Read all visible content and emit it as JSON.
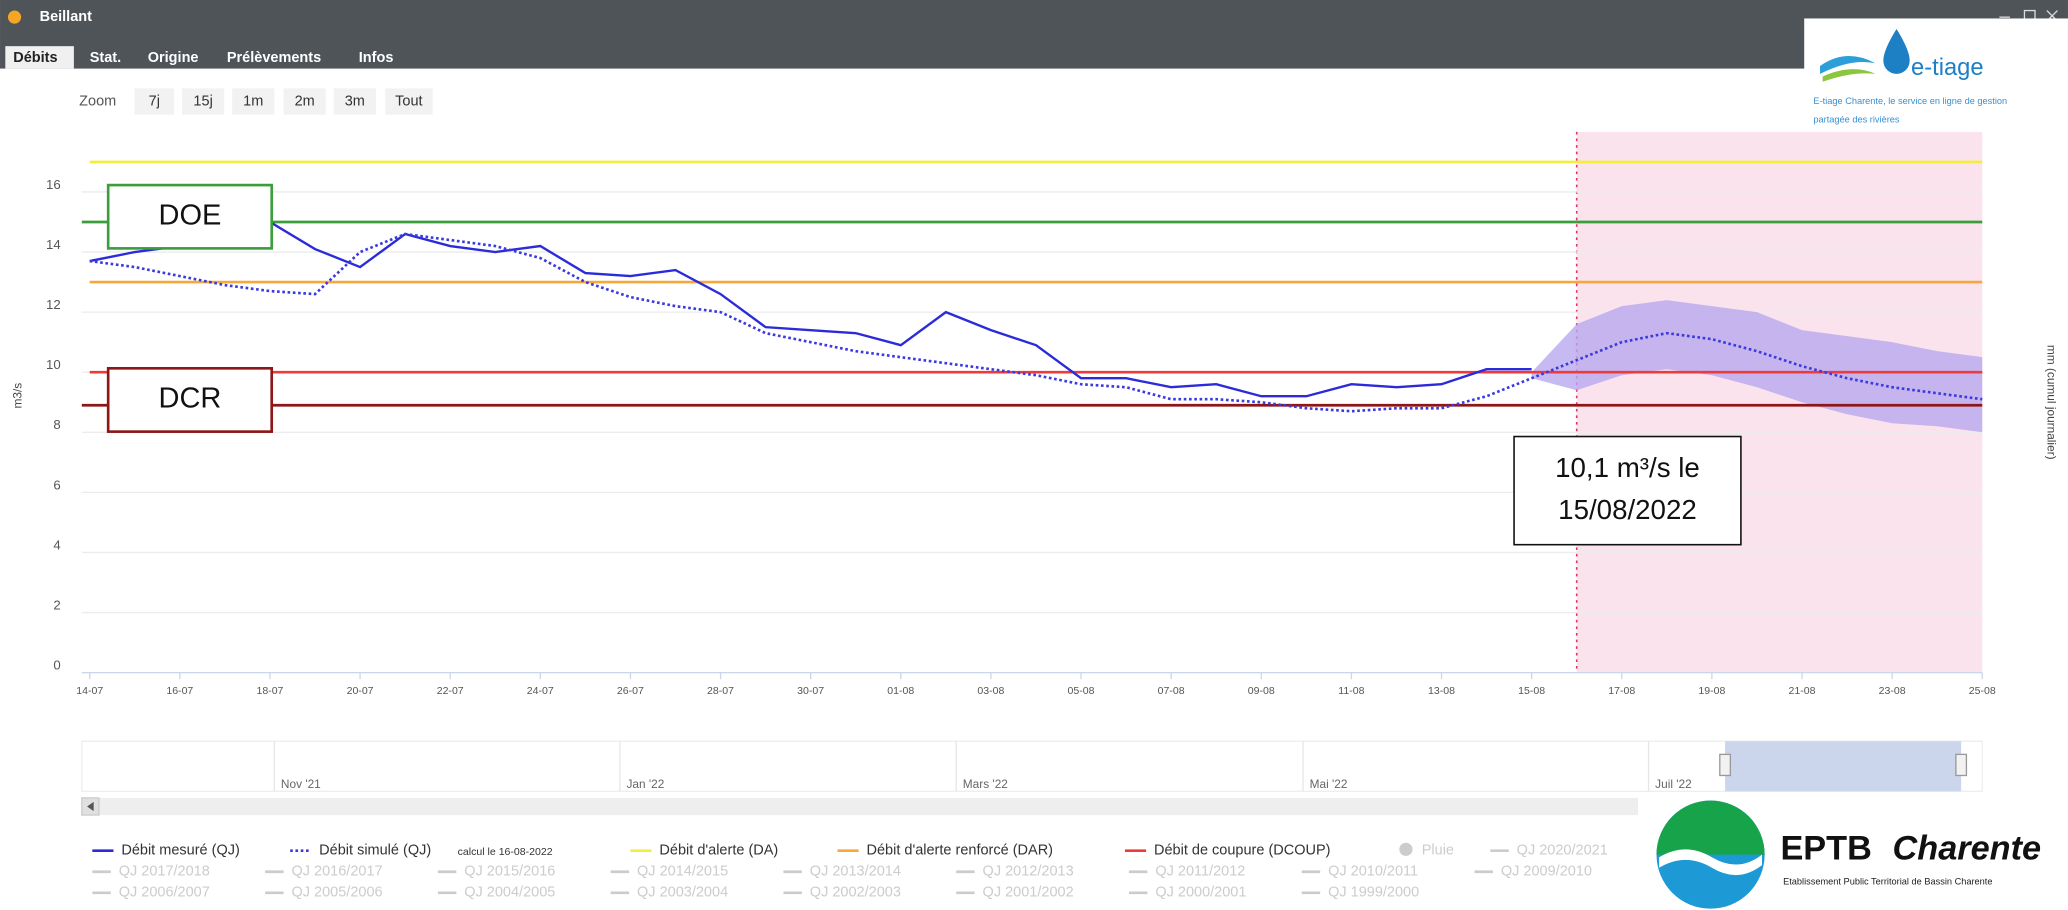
{
  "window": {
    "title": "Beillant"
  },
  "tabs": [
    "Débits",
    "Stat.",
    "Origine",
    "Prélèvements",
    "Infos"
  ],
  "zoom": {
    "label": "Zoom",
    "buttons": [
      "7j",
      "15j",
      "1m",
      "2m",
      "3m",
      "Tout"
    ]
  },
  "logo_etiage": {
    "name": "e-tiage",
    "tagline": [
      "E-tiage Charente, le service en ligne de gestion",
      "partagée des rivières"
    ]
  },
  "chart_data": {
    "type": "line",
    "x": [
      "14-07",
      null,
      "16-07",
      null,
      "18-07",
      null,
      "20-07",
      null,
      "22-07",
      null,
      "24-07",
      null,
      "26-07",
      null,
      "28-07",
      null,
      "30-07",
      null,
      "01-08",
      null,
      "03-08",
      null,
      "05-08",
      null,
      "07-08",
      null,
      "09-08",
      null,
      "11-08",
      null,
      "13-08",
      null,
      "15-08",
      null,
      "17-08",
      null,
      "19-08",
      null,
      "21-08",
      null,
      "23-08",
      null,
      "25-08"
    ],
    "ylim": [
      0,
      18
    ],
    "yticks": [
      0,
      2,
      4,
      6,
      8,
      10,
      12,
      14,
      16
    ],
    "grid": true,
    "ylabel": "m3/s",
    "y2label": "mm (cumul journalier)",
    "series": [
      {
        "name": "Débit mesuré (QJ)",
        "color": "#2b2bd9",
        "dash": false,
        "values": [
          13.7,
          14.0,
          14.2,
          14.3,
          15.0,
          14.1,
          13.5,
          14.6,
          14.2,
          14.0,
          14.2,
          13.3,
          13.2,
          13.4,
          12.6,
          11.5,
          11.4,
          11.3,
          10.9,
          12.0,
          11.4,
          10.9,
          9.8,
          9.8,
          9.5,
          9.6,
          9.2,
          9.2,
          9.6,
          9.5,
          9.6,
          10.1,
          10.1,
          null,
          null,
          null,
          null,
          null,
          null,
          null,
          null,
          null,
          null
        ]
      },
      {
        "name": "Débit simulé (QJ)",
        "note": "calcul le 16-08-2022",
        "color": "#3a3ae0",
        "dash": true,
        "values": [
          13.7,
          13.5,
          13.2,
          12.9,
          12.7,
          12.6,
          14.0,
          14.6,
          14.4,
          14.2,
          13.8,
          13.0,
          12.5,
          12.2,
          12.0,
          11.3,
          11.0,
          10.7,
          10.5,
          10.3,
          10.1,
          9.9,
          9.6,
          9.5,
          9.1,
          9.1,
          9.0,
          8.8,
          8.7,
          8.8,
          8.8,
          9.2,
          9.8,
          10.4,
          11.0,
          11.3,
          11.1,
          10.7,
          10.2,
          9.8,
          9.5,
          9.3,
          9.1
        ]
      }
    ],
    "band": {
      "color": "#b9a8ef",
      "upper": [
        null,
        null,
        null,
        null,
        null,
        null,
        null,
        null,
        null,
        null,
        null,
        null,
        null,
        null,
        null,
        null,
        null,
        null,
        null,
        null,
        null,
        null,
        null,
        null,
        null,
        null,
        null,
        null,
        null,
        null,
        null,
        null,
        10.0,
        11.6,
        12.2,
        12.4,
        12.2,
        12.0,
        11.4,
        11.2,
        11.0,
        10.7,
        10.5
      ],
      "lower": [
        null,
        null,
        null,
        null,
        null,
        null,
        null,
        null,
        null,
        null,
        null,
        null,
        null,
        null,
        null,
        null,
        null,
        null,
        null,
        null,
        null,
        null,
        null,
        null,
        null,
        null,
        null,
        null,
        null,
        null,
        null,
        null,
        9.8,
        9.4,
        9.9,
        10.1,
        9.9,
        9.5,
        9.0,
        8.6,
        8.3,
        8.2,
        8.0
      ]
    },
    "forecast_color": "#fbe3ee",
    "thresholds": [
      {
        "name": "Débit d'alerte (DA)",
        "color": "#f2ee3a",
        "value": 17
      },
      {
        "name": "Débit d'alerte renforcé (DAR)",
        "color": "#f7a83a",
        "value": 13
      },
      {
        "name": "Débit de coupure (DCOUP)",
        "color": "#f03a3a",
        "value": 10
      }
    ],
    "reference_lines": [
      {
        "label": "DOE",
        "color": "#3a9e3a",
        "value": 15
      },
      {
        "label": "DCR",
        "color": "#8e1616",
        "value": 8.9
      }
    ],
    "annotation": [
      "10,1 m³/s le",
      "15/08/2022"
    ]
  },
  "navigator": {
    "labels": [
      "Nov '21",
      "Jan '22",
      "Mars '22",
      "Mai '22",
      "Juil '22"
    ]
  },
  "legend_inactive": {
    "rain": "Pluie",
    "years": [
      "QJ 2020/2021",
      "QJ 2017/2018",
      "QJ 2016/2017",
      "QJ 2015/2016",
      "QJ 2014/2015",
      "QJ 2013/2014",
      "QJ 2012/2013",
      "QJ 2011/2012",
      "QJ 2010/2011",
      "QJ 2009/2010",
      "QJ 2006/2007",
      "QJ 2005/2006",
      "QJ 2004/2005",
      "QJ 2003/2004",
      "QJ 2002/2003",
      "QJ 2001/2002",
      "QJ 2000/2001",
      "QJ 1999/2000"
    ]
  },
  "logo_eptb": {
    "name": "EPTB",
    "name2": "Charente",
    "subtitle": "Etablissement Public Territorial de Bassin Charente"
  }
}
